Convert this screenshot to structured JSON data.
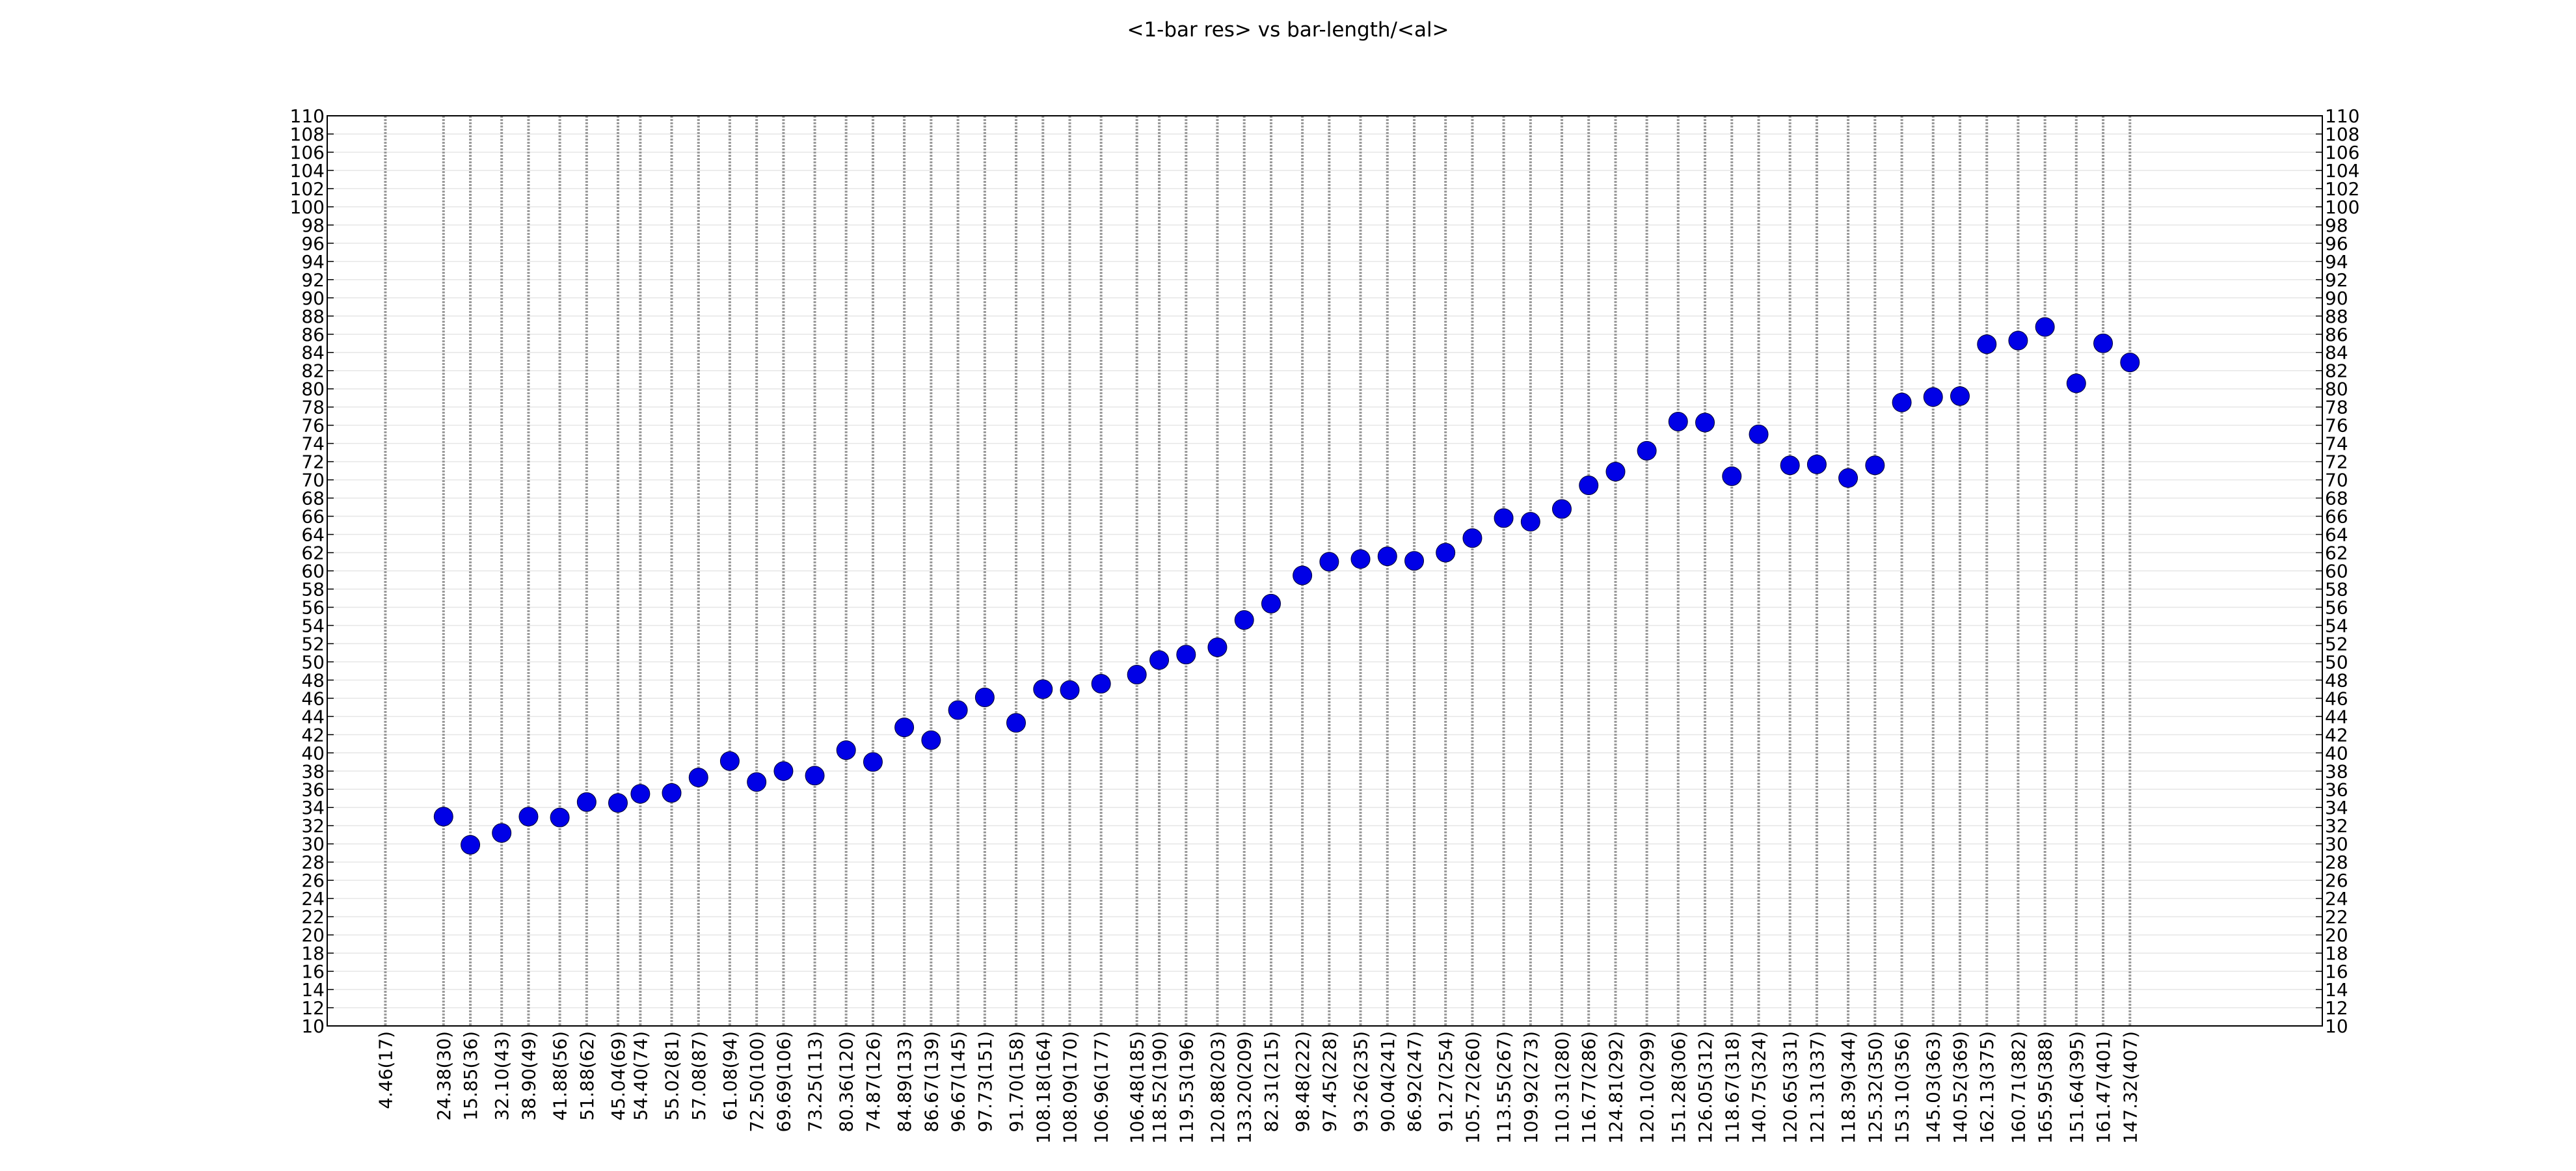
{
  "chart_data": {
    "type": "scatter",
    "title": "<1-bar res> vs bar-length/<al>",
    "xlabel": "",
    "ylabel": "",
    "ylim": [
      10,
      110
    ],
    "ytick_step": 2,
    "grid": true,
    "legend": "none",
    "marker_color": "#0000e6",
    "vertical_line_color": "#9a9a9a",
    "horizontal_grid_color": "#e6e6e6",
    "categories": [
      "4.46(17)",
      "24.38(30)",
      "15.85(36)",
      "32.10(43)",
      "38.90(49)",
      "41.88(56)",
      "51.88(62)",
      "45.04(69)",
      "54.40(74)",
      "55.02(81)",
      "57.08(87)",
      "61.08(94)",
      "72.50(100)",
      "69.69(106)",
      "73.25(113)",
      "80.36(120)",
      "74.87(126)",
      "84.89(133)",
      "86.67(139)",
      "96.67(145)",
      "97.73(151)",
      "91.70(158)",
      "108.18(164)",
      "108.09(170)",
      "106.96(177)",
      "106.48(185)",
      "118.52(190)",
      "119.53(196)",
      "120.88(203)",
      "133.20(209)",
      "82.31(215)",
      "98.48(222)",
      "97.45(228)",
      "93.26(235)",
      "90.04(241)",
      "86.92(247)",
      "91.27(254)",
      "105.72(260)",
      "113.55(267)",
      "109.92(273)",
      "110.31(280)",
      "116.77(286)",
      "124.81(292)",
      "120.10(299)",
      "151.28(306)",
      "126.05(312)",
      "118.67(318)",
      "140.75(324)",
      "120.65(331)",
      "121.31(337)",
      "118.39(344)",
      "125.32(350)",
      "153.10(356)",
      "145.03(363)",
      "140.52(369)",
      "162.13(375)",
      "160.71(382)",
      "165.95(388)",
      "151.64(395)",
      "161.47(401)",
      "147.32(407)"
    ],
    "x": [
      17,
      30,
      36,
      43,
      49,
      56,
      62,
      69,
      74,
      81,
      87,
      94,
      100,
      106,
      113,
      120,
      126,
      133,
      139,
      145,
      151,
      158,
      164,
      170,
      177,
      185,
      190,
      196,
      203,
      209,
      215,
      222,
      228,
      235,
      241,
      247,
      254,
      260,
      267,
      273,
      280,
      286,
      292,
      299,
      306,
      312,
      318,
      324,
      331,
      337,
      344,
      350,
      356,
      363,
      369,
      375,
      382,
      388,
      395,
      401,
      407
    ],
    "xlim": [
      4,
      450
    ],
    "series": [
      {
        "values": [
          null,
          33.0,
          29.9,
          31.2,
          33.0,
          32.9,
          34.6,
          34.5,
          35.5,
          35.6,
          37.3,
          39.1,
          36.8,
          38.0,
          37.5,
          40.3,
          39.0,
          42.8,
          41.4,
          44.7,
          46.1,
          43.3,
          47.0,
          46.9,
          47.6,
          48.6,
          50.2,
          50.8,
          51.6,
          54.6,
          56.4,
          59.5,
          61.0,
          61.3,
          61.6,
          61.1,
          62.0,
          63.6,
          65.8,
          65.4,
          66.8,
          69.4,
          70.9,
          73.2,
          76.4,
          76.3,
          70.4,
          75.0,
          71.6,
          71.7,
          70.2,
          71.6,
          78.5,
          79.1,
          79.2,
          84.9,
          85.3,
          86.8,
          80.6,
          85.0,
          82.9
        ]
      }
    ]
  }
}
